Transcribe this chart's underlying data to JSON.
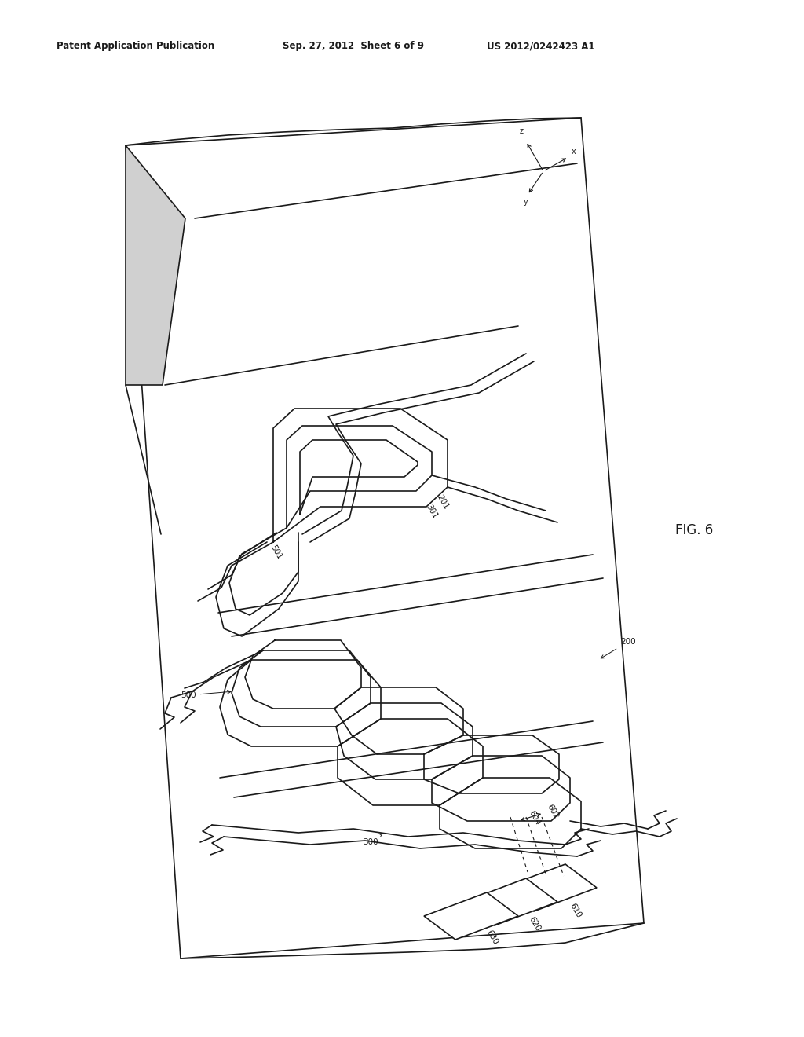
{
  "header_left": "Patent Application Publication",
  "header_center": "Sep. 27, 2012  Sheet 6 of 9",
  "header_right": "US 2012/0242423 A1",
  "fig_label": "FIG. 6",
  "background_color": "#ffffff",
  "line_color": "#1a1a1a",
  "fig_width": 10.24,
  "fig_height": 13.2,
  "dpi": 100,
  "lw_main": 1.2,
  "lw_thin": 0.8,
  "label_fontsize": 7.5
}
